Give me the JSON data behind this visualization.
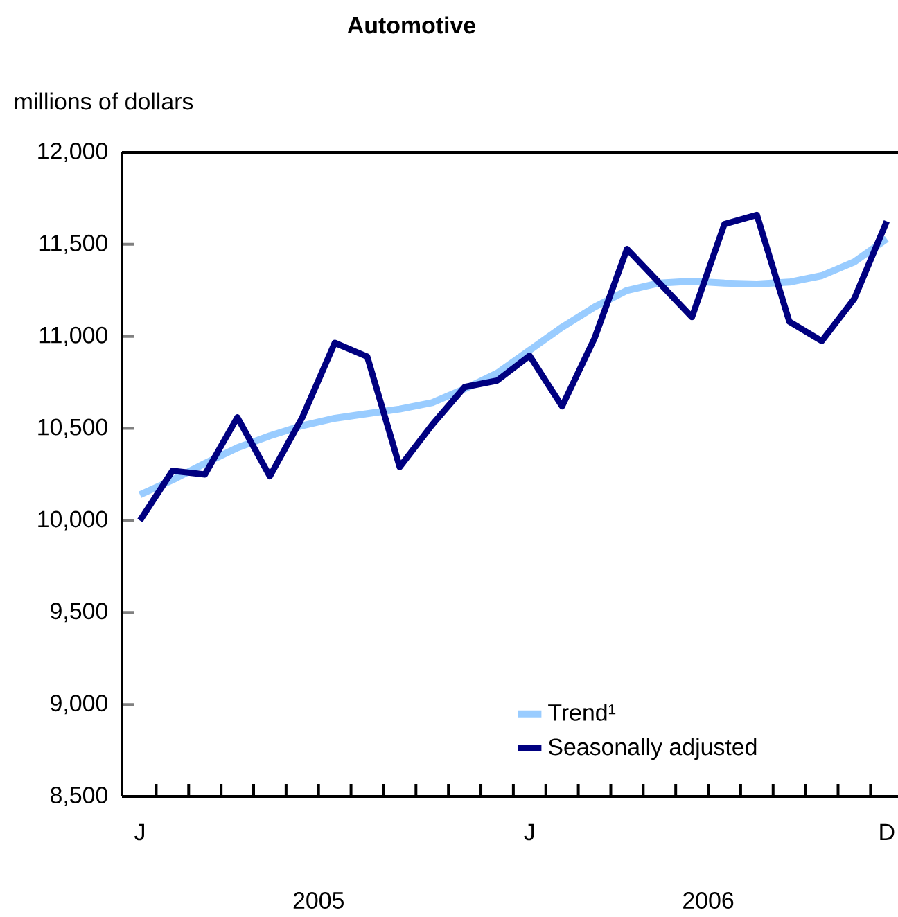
{
  "chart_data": {
    "type": "line",
    "title": "Automotive",
    "ylabel": "millions of dollars",
    "categories": [
      "J",
      null,
      null,
      null,
      null,
      null,
      null,
      null,
      null,
      null,
      null,
      null,
      "J",
      null,
      null,
      null,
      null,
      null,
      null,
      null,
      null,
      null,
      null,
      "D"
    ],
    "series": [
      {
        "name": "Trend¹",
        "color": "#99ccff",
        "values": [
          10140,
          10220,
          10310,
          10395,
          10460,
          10515,
          10555,
          10580,
          10605,
          10640,
          10715,
          10800,
          10925,
          11050,
          11160,
          11250,
          11290,
          11300,
          11290,
          11285,
          11295,
          11330,
          11405,
          11530
        ]
      },
      {
        "name": "Seasonally adjusted",
        "color": "#000080",
        "values": [
          10000,
          10270,
          10250,
          10560,
          10240,
          10560,
          10965,
          10890,
          10290,
          10520,
          10725,
          10760,
          10895,
          10620,
          10990,
          11475,
          11290,
          11105,
          11610,
          11660,
          11080,
          10975,
          11205,
          11625
        ]
      }
    ],
    "ylim": [
      8500,
      12000
    ],
    "yticks": [
      {
        "value": 8500,
        "label": "8,500"
      },
      {
        "value": 9000,
        "label": "9,000"
      },
      {
        "value": 9500,
        "label": "9,500"
      },
      {
        "value": 10000,
        "label": "10,000"
      },
      {
        "value": 10500,
        "label": "10,500"
      },
      {
        "value": 11000,
        "label": "11,000"
      },
      {
        "value": 11500,
        "label": "11,500"
      },
      {
        "value": 12000,
        "label": "12,000"
      }
    ],
    "annotations": [
      "2005",
      "2006"
    ],
    "legend": "bottom right",
    "grid": false,
    "marker": "none",
    "line_style": "solid"
  }
}
